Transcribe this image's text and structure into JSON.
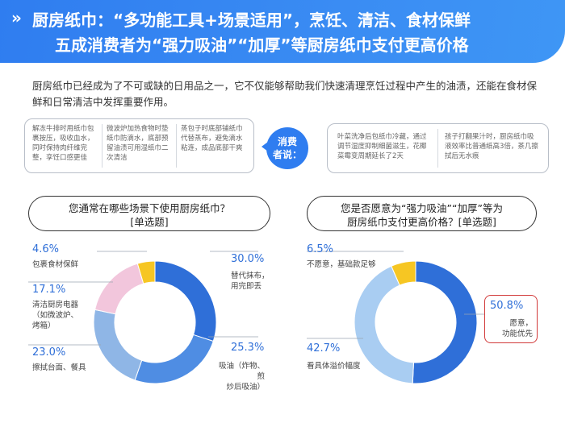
{
  "header": {
    "chevron": "»",
    "title_line1": "厨房纸巾：“多功能工具+场景适用”，烹饪、清洁、食材保鲜",
    "title_line2": "五成消费者为“强力吸油”“加厚”等厨房纸巾支付更高价格"
  },
  "intro": "厨房纸巾已经成为了不可或缺的日用品之一，它不仅能够帮助我们快速清理烹饪过程中产生的油渍，还能在食材保鲜和日常清洁中发挥重要作用。",
  "quotes_left": [
    "解冻牛排时用纸巾包裹按压，吸收血水，同时保持肉纤维完整，孪饪口感更佳",
    "微波炉加热食物时垫纸巾防滴水，底部预留油渍可用湿纸巾二次清洁",
    "蒸包子时底部铺纸巾代替蒸布，避免滴水粘连，成品底部干爽"
  ],
  "bubble": {
    "line1": "消费",
    "line2": "者说："
  },
  "quotes_right": [
    "叶菜洗净后包纸巾冷藏，通过调节湿度抑制细菌滋生，花椰菜霉变周期延长了2天",
    "孩子打翻果汁时，厨房纸巾吸液效率比普通纸高3倍，茶几擦拭后无水痕"
  ],
  "question1": {
    "line1": "您通常在哪些场景下使用厨房纸巾？",
    "line2": "[单选题]"
  },
  "question2": {
    "line1": "您是否愿意为“强力吸油”“加厚”等为",
    "line2": "厨房纸巾支付更高价格？[单选题]"
  },
  "chart_data": [
    {
      "type": "pie",
      "donut": true,
      "categories": [
        "替代抹布，用完即丢",
        "吸油（炸物、煎炒后吸油）",
        "擦拭台面、餐具",
        "清洁厨房电器（如微波炉、烤箱）",
        "包裹食材保鲜"
      ],
      "values": [
        30.0,
        25.3,
        23.0,
        17.1,
        4.6
      ],
      "value_labels": [
        "30.0%",
        "25.3%",
        "23.0%",
        "17.1%",
        "4.6%"
      ],
      "colors": [
        "#2f6fd8",
        "#4f8de3",
        "#8fb6e6",
        "#f2c6dc",
        "#f6c623"
      ]
    },
    {
      "type": "pie",
      "donut": true,
      "categories": [
        "愿意，功能优先",
        "看具体溢价幅度",
        "不愿意，基础款足够"
      ],
      "values": [
        50.8,
        42.7,
        6.5
      ],
      "value_labels": [
        "50.8%",
        "42.7%",
        "6.5%"
      ],
      "colors": [
        "#2f6fd8",
        "#a9cdf2",
        "#f6c623"
      ]
    }
  ],
  "labels1": {
    "p0": "30.0%",
    "l0a": "替代抹布，",
    "l0b": "用完即丢",
    "p1": "25.3%",
    "l1a": "吸油（炸物、煎",
    "l1b": "炒后吸油）",
    "p2": "23.0%",
    "l2a": "擦拭台面、餐具",
    "p3": "17.1%",
    "l3a": "清洁厨房电器",
    "l3b": "（如微波炉、",
    "l3c": "烤箱）",
    "p4": "4.6%",
    "l4a": "包裹食材保鲜"
  },
  "labels2": {
    "p0": "50.8%",
    "l0a": "愿意，",
    "l0b": "功能优先",
    "p1": "42.7%",
    "l1a": "看具体溢价幅度",
    "p2": "6.5%",
    "l2a": "不愿意，基础款足够"
  }
}
